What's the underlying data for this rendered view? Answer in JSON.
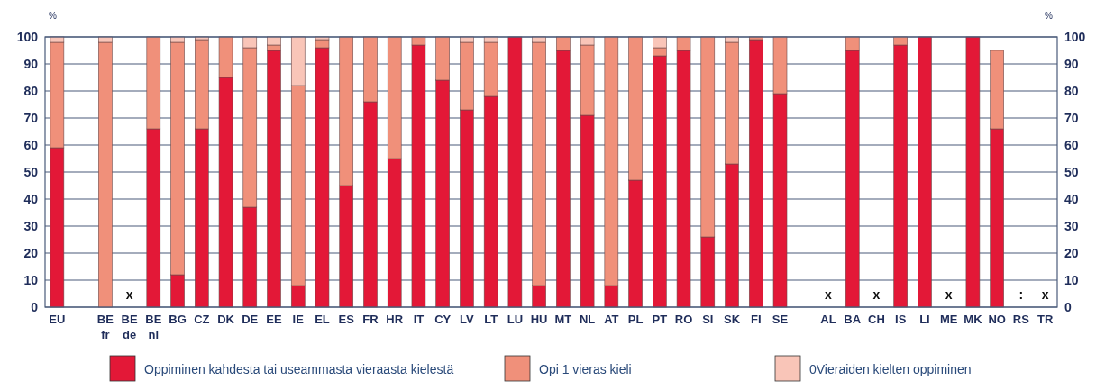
{
  "chart_data": {
    "type": "bar",
    "stacked": true,
    "ylabel": "%",
    "y2label": "%",
    "categories": [
      "EU",
      null,
      "BE fr",
      "BE de",
      "BE nl",
      "BG",
      "CZ",
      "DK",
      "DE",
      "EE",
      "IE",
      "EL",
      "ES",
      "FR",
      "HR",
      "IT",
      "CY",
      "LV",
      "LT",
      "LU",
      "HU",
      "MT",
      "NL",
      "AT",
      "PL",
      "PT",
      "RO",
      "SI",
      "SK",
      "FI",
      "SE",
      null,
      "AL",
      "BA",
      "CH",
      "IS",
      "LI",
      "ME",
      "MK",
      "NO",
      "RS",
      "TR"
    ],
    "series": [
      {
        "name": "Oppiminen kahdesta tai useammasta vieraasta kielestä",
        "color": "#e31837",
        "values": [
          59,
          null,
          0,
          null,
          66,
          12,
          66,
          85,
          37,
          95,
          8,
          96,
          45,
          76,
          55,
          97,
          84,
          73,
          78,
          100,
          8,
          95,
          71,
          8,
          47,
          93,
          95,
          26,
          53,
          99,
          79,
          null,
          null,
          95,
          null,
          97,
          100,
          null,
          100,
          66,
          null,
          null
        ]
      },
      {
        "name": "Opi 1 vieras kieli",
        "color": "#f0907a",
        "values": [
          39,
          null,
          98,
          null,
          34,
          86,
          33,
          15,
          59,
          2,
          74,
          3,
          55,
          24,
          45,
          3,
          16,
          25,
          20,
          0,
          90,
          5,
          26,
          92,
          53,
          3,
          5,
          74,
          45,
          1,
          21,
          null,
          null,
          5,
          null,
          3,
          0,
          null,
          0,
          29,
          null,
          null
        ]
      },
      {
        "name": "0Vieraiden kielten oppiminen",
        "color": "#f9c5b8",
        "values": [
          2,
          null,
          2,
          null,
          0,
          2,
          1,
          0,
          4,
          3,
          18,
          1,
          0,
          0,
          0,
          0,
          0,
          2,
          2,
          0,
          2,
          0,
          3,
          0,
          0,
          4,
          0,
          0,
          2,
          0,
          0,
          null,
          null,
          0,
          null,
          0,
          0,
          null,
          0,
          0,
          null,
          null
        ]
      }
    ],
    "ylim": [
      0,
      100
    ],
    "yticks": [
      0,
      10,
      20,
      30,
      40,
      50,
      60,
      70,
      80,
      90,
      100
    ],
    "y2lim": [
      0,
      100
    ],
    "y2ticks": [
      0,
      10,
      20,
      30,
      40,
      50,
      60,
      70,
      80,
      90,
      100
    ],
    "grid": "y",
    "legend": "bottom",
    "annotations": [
      "x",
      "x",
      "x",
      "x",
      ":",
      "x"
    ]
  }
}
